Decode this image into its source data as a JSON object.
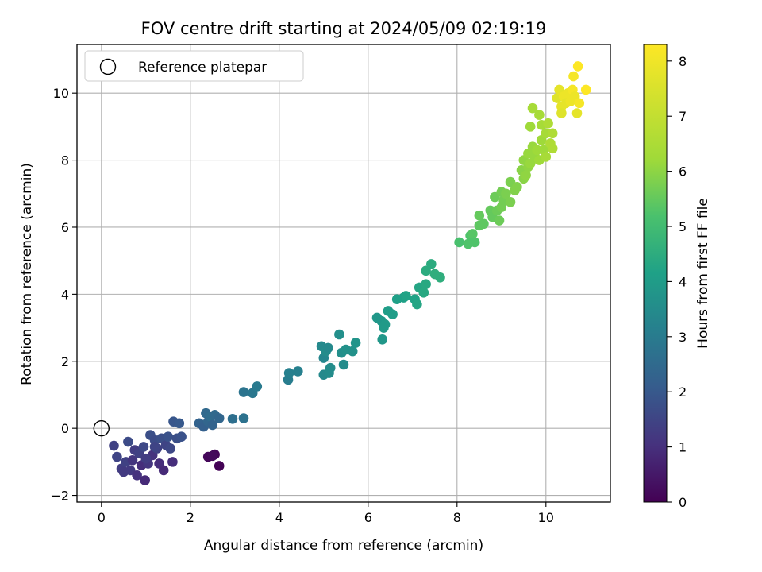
{
  "chart_data": {
    "type": "scatter",
    "title": "FOV centre drift starting at 2024/05/09 02:19:19",
    "xlabel": "Angular distance from reference (arcmin)",
    "ylabel": "Rotation from reference (arcmin)",
    "xlim": [
      -0.55,
      11.45
    ],
    "ylim": [
      -2.2,
      11.45
    ],
    "xticks": [
      0,
      2,
      4,
      6,
      8,
      10
    ],
    "yticks": [
      -2,
      0,
      2,
      4,
      6,
      8,
      10
    ],
    "grid": true,
    "legend": {
      "placement": "upper-left",
      "entries": [
        "Reference platepar"
      ]
    },
    "reference_point": {
      "x": 0,
      "y": 0,
      "label": "Reference platepar"
    },
    "colorbar": {
      "label": "Hours from first FF file",
      "colormap": "viridis",
      "range": [
        0,
        8.3
      ],
      "ticks": [
        0,
        1,
        2,
        3,
        4,
        5,
        6,
        7,
        8
      ]
    },
    "points": [
      {
        "x": 2.55,
        "y": -0.78,
        "h": 0.1
      },
      {
        "x": 2.4,
        "y": -0.85,
        "h": 0.15
      },
      {
        "x": 2.65,
        "y": -1.12,
        "h": 0.05
      },
      {
        "x": 2.5,
        "y": -0.82,
        "h": 0.2
      },
      {
        "x": 0.28,
        "y": -0.52,
        "h": 1.6
      },
      {
        "x": 0.35,
        "y": -0.85,
        "h": 1.7
      },
      {
        "x": 0.45,
        "y": -1.2,
        "h": 1.5
      },
      {
        "x": 0.55,
        "y": -1.0,
        "h": 1.6
      },
      {
        "x": 0.6,
        "y": -0.4,
        "h": 1.9
      },
      {
        "x": 0.65,
        "y": -1.25,
        "h": 1.4
      },
      {
        "x": 0.7,
        "y": -0.95,
        "h": 1.3
      },
      {
        "x": 0.75,
        "y": -0.65,
        "h": 1.5
      },
      {
        "x": 0.8,
        "y": -1.4,
        "h": 1.2
      },
      {
        "x": 0.85,
        "y": -0.75,
        "h": 1.6
      },
      {
        "x": 0.9,
        "y": -1.1,
        "h": 1.1
      },
      {
        "x": 0.95,
        "y": -0.55,
        "h": 1.8
      },
      {
        "x": 0.98,
        "y": -1.55,
        "h": 1.0
      },
      {
        "x": 1.05,
        "y": -1.05,
        "h": 1.3
      },
      {
        "x": 1.1,
        "y": -0.2,
        "h": 2.0
      },
      {
        "x": 1.15,
        "y": -0.8,
        "h": 1.2
      },
      {
        "x": 1.2,
        "y": -0.35,
        "h": 1.9
      },
      {
        "x": 1.25,
        "y": -0.6,
        "h": 1.6
      },
      {
        "x": 1.3,
        "y": -1.05,
        "h": 1.1
      },
      {
        "x": 1.35,
        "y": -0.3,
        "h": 2.0
      },
      {
        "x": 1.4,
        "y": -1.25,
        "h": 1.0
      },
      {
        "x": 1.45,
        "y": -0.5,
        "h": 1.7
      },
      {
        "x": 1.5,
        "y": -0.25,
        "h": 2.1
      },
      {
        "x": 1.55,
        "y": -0.6,
        "h": 1.8
      },
      {
        "x": 1.6,
        "y": -1.0,
        "h": 1.1
      },
      {
        "x": 1.62,
        "y": 0.2,
        "h": 2.2
      },
      {
        "x": 1.7,
        "y": -0.3,
        "h": 2.0
      },
      {
        "x": 1.75,
        "y": 0.15,
        "h": 2.3
      },
      {
        "x": 1.8,
        "y": -0.25,
        "h": 2.1
      },
      {
        "x": 0.5,
        "y": -1.3,
        "h": 1.4
      },
      {
        "x": 1.0,
        "y": -0.9,
        "h": 1.5
      },
      {
        "x": 1.2,
        "y": -0.55,
        "h": 1.7
      },
      {
        "x": 2.2,
        "y": 0.15,
        "h": 2.6
      },
      {
        "x": 2.3,
        "y": 0.05,
        "h": 2.5
      },
      {
        "x": 2.35,
        "y": 0.45,
        "h": 2.8
      },
      {
        "x": 2.4,
        "y": 0.2,
        "h": 2.7
      },
      {
        "x": 2.45,
        "y": 0.35,
        "h": 2.9
      },
      {
        "x": 2.5,
        "y": 0.1,
        "h": 2.6
      },
      {
        "x": 2.55,
        "y": 0.4,
        "h": 2.8
      },
      {
        "x": 2.65,
        "y": 0.3,
        "h": 2.7
      },
      {
        "x": 2.95,
        "y": 0.28,
        "h": 3.0
      },
      {
        "x": 3.2,
        "y": 0.3,
        "h": 3.1
      },
      {
        "x": 3.2,
        "y": 1.08,
        "h": 3.2
      },
      {
        "x": 3.4,
        "y": 1.05,
        "h": 3.3
      },
      {
        "x": 3.5,
        "y": 1.25,
        "h": 3.4
      },
      {
        "x": 4.2,
        "y": 1.45,
        "h": 3.5
      },
      {
        "x": 4.22,
        "y": 1.65,
        "h": 3.6
      },
      {
        "x": 4.42,
        "y": 1.7,
        "h": 3.6
      },
      {
        "x": 4.95,
        "y": 2.45,
        "h": 3.9
      },
      {
        "x": 5.0,
        "y": 2.1,
        "h": 3.8
      },
      {
        "x": 5.05,
        "y": 2.3,
        "h": 4.0
      },
      {
        "x": 5.1,
        "y": 2.4,
        "h": 3.9
      },
      {
        "x": 5.15,
        "y": 1.8,
        "h": 4.0
      },
      {
        "x": 5.0,
        "y": 1.6,
        "h": 3.9
      },
      {
        "x": 5.12,
        "y": 1.65,
        "h": 4.0
      },
      {
        "x": 5.35,
        "y": 2.8,
        "h": 4.1
      },
      {
        "x": 5.4,
        "y": 2.25,
        "h": 4.1
      },
      {
        "x": 5.45,
        "y": 1.9,
        "h": 4.0
      },
      {
        "x": 5.5,
        "y": 2.35,
        "h": 4.2
      },
      {
        "x": 5.65,
        "y": 2.3,
        "h": 4.2
      },
      {
        "x": 5.72,
        "y": 2.55,
        "h": 4.3
      },
      {
        "x": 6.2,
        "y": 3.3,
        "h": 4.4
      },
      {
        "x": 6.3,
        "y": 3.2,
        "h": 4.4
      },
      {
        "x": 6.35,
        "y": 3.0,
        "h": 4.5
      },
      {
        "x": 6.38,
        "y": 3.1,
        "h": 4.5
      },
      {
        "x": 6.32,
        "y": 2.65,
        "h": 4.4
      },
      {
        "x": 6.45,
        "y": 3.5,
        "h": 4.6
      },
      {
        "x": 6.55,
        "y": 3.4,
        "h": 4.6
      },
      {
        "x": 6.65,
        "y": 3.85,
        "h": 4.7
      },
      {
        "x": 6.8,
        "y": 3.9,
        "h": 4.7
      },
      {
        "x": 6.85,
        "y": 3.95,
        "h": 4.8
      },
      {
        "x": 7.05,
        "y": 3.85,
        "h": 4.8
      },
      {
        "x": 7.1,
        "y": 3.7,
        "h": 4.9
      },
      {
        "x": 7.15,
        "y": 4.2,
        "h": 4.9
      },
      {
        "x": 7.25,
        "y": 4.05,
        "h": 5.0
      },
      {
        "x": 7.3,
        "y": 4.3,
        "h": 5.0
      },
      {
        "x": 7.3,
        "y": 4.7,
        "h": 5.1
      },
      {
        "x": 7.42,
        "y": 4.9,
        "h": 5.1
      },
      {
        "x": 7.5,
        "y": 4.6,
        "h": 5.2
      },
      {
        "x": 7.62,
        "y": 4.5,
        "h": 5.2
      },
      {
        "x": 8.05,
        "y": 5.55,
        "h": 5.9
      },
      {
        "x": 8.25,
        "y": 5.5,
        "h": 6.0
      },
      {
        "x": 8.3,
        "y": 5.75,
        "h": 6.0
      },
      {
        "x": 8.35,
        "y": 5.8,
        "h": 6.1
      },
      {
        "x": 8.4,
        "y": 5.55,
        "h": 6.0
      },
      {
        "x": 8.5,
        "y": 6.05,
        "h": 6.2
      },
      {
        "x": 8.5,
        "y": 6.35,
        "h": 6.3
      },
      {
        "x": 8.6,
        "y": 6.1,
        "h": 6.2
      },
      {
        "x": 8.75,
        "y": 6.5,
        "h": 6.3
      },
      {
        "x": 8.8,
        "y": 6.3,
        "h": 6.3
      },
      {
        "x": 8.85,
        "y": 6.9,
        "h": 6.4
      },
      {
        "x": 8.9,
        "y": 6.5,
        "h": 6.4
      },
      {
        "x": 8.95,
        "y": 6.2,
        "h": 6.4
      },
      {
        "x": 9.0,
        "y": 6.6,
        "h": 6.5
      },
      {
        "x": 9.0,
        "y": 7.05,
        "h": 6.5
      },
      {
        "x": 9.05,
        "y": 6.8,
        "h": 6.5
      },
      {
        "x": 9.1,
        "y": 7.0,
        "h": 6.6
      },
      {
        "x": 9.2,
        "y": 6.75,
        "h": 6.6
      },
      {
        "x": 9.2,
        "y": 7.35,
        "h": 6.6
      },
      {
        "x": 9.3,
        "y": 7.1,
        "h": 6.7
      },
      {
        "x": 9.35,
        "y": 7.2,
        "h": 6.7
      },
      {
        "x": 9.45,
        "y": 7.7,
        "h": 6.8
      },
      {
        "x": 9.5,
        "y": 7.45,
        "h": 6.8
      },
      {
        "x": 9.5,
        "y": 8.0,
        "h": 6.9
      },
      {
        "x": 9.55,
        "y": 7.55,
        "h": 6.9
      },
      {
        "x": 9.6,
        "y": 7.8,
        "h": 6.9
      },
      {
        "x": 9.6,
        "y": 8.2,
        "h": 7.0
      },
      {
        "x": 9.65,
        "y": 7.9,
        "h": 7.0
      },
      {
        "x": 9.65,
        "y": 9.0,
        "h": 7.1
      },
      {
        "x": 9.7,
        "y": 9.55,
        "h": 7.2
      },
      {
        "x": 9.7,
        "y": 8.4,
        "h": 7.0
      },
      {
        "x": 9.75,
        "y": 8.1,
        "h": 7.0
      },
      {
        "x": 9.8,
        "y": 8.3,
        "h": 7.1
      },
      {
        "x": 9.85,
        "y": 9.35,
        "h": 7.2
      },
      {
        "x": 9.85,
        "y": 8.0,
        "h": 7.1
      },
      {
        "x": 9.9,
        "y": 8.6,
        "h": 7.1
      },
      {
        "x": 9.9,
        "y": 9.05,
        "h": 7.2
      },
      {
        "x": 9.95,
        "y": 8.3,
        "h": 7.1
      },
      {
        "x": 10.0,
        "y": 8.8,
        "h": 7.2
      },
      {
        "x": 10.0,
        "y": 8.1,
        "h": 7.2
      },
      {
        "x": 10.05,
        "y": 9.1,
        "h": 7.3
      },
      {
        "x": 10.1,
        "y": 8.5,
        "h": 7.3
      },
      {
        "x": 10.15,
        "y": 8.35,
        "h": 7.3
      },
      {
        "x": 10.15,
        "y": 8.8,
        "h": 7.3
      },
      {
        "x": 10.25,
        "y": 9.85,
        "h": 7.9
      },
      {
        "x": 10.3,
        "y": 10.1,
        "h": 8.0
      },
      {
        "x": 10.35,
        "y": 9.6,
        "h": 8.0
      },
      {
        "x": 10.35,
        "y": 9.4,
        "h": 7.9
      },
      {
        "x": 10.4,
        "y": 9.9,
        "h": 8.1
      },
      {
        "x": 10.45,
        "y": 9.7,
        "h": 8.0
      },
      {
        "x": 10.5,
        "y": 10.0,
        "h": 8.1
      },
      {
        "x": 10.55,
        "y": 9.75,
        "h": 8.1
      },
      {
        "x": 10.6,
        "y": 10.1,
        "h": 8.2
      },
      {
        "x": 10.62,
        "y": 10.5,
        "h": 8.2
      },
      {
        "x": 10.65,
        "y": 9.9,
        "h": 8.1
      },
      {
        "x": 10.7,
        "y": 9.4,
        "h": 8.0
      },
      {
        "x": 10.72,
        "y": 10.8,
        "h": 8.3
      },
      {
        "x": 10.75,
        "y": 9.7,
        "h": 8.2
      },
      {
        "x": 10.9,
        "y": 10.1,
        "h": 8.3
      }
    ]
  }
}
